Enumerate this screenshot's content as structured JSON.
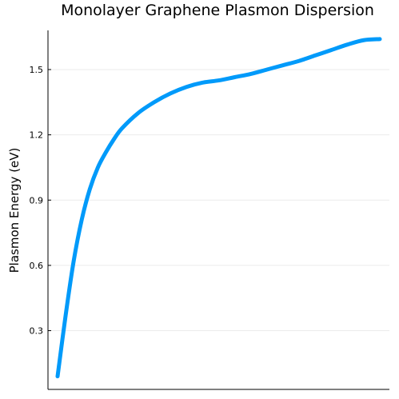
{
  "chart_data": {
    "type": "line",
    "title": "Monolayer Graphene Plasmon Dispersion",
    "xlabel": "",
    "ylabel": "Plasmon Energy (eV)",
    "xlim": [
      0,
      1
    ],
    "ylim": [
      0.03,
      1.68
    ],
    "y_ticks": [
      0.3,
      0.6,
      0.9,
      1.2,
      1.5
    ],
    "y_tick_labels": [
      "0.3",
      "0.6",
      "0.9",
      "1.2",
      "1.5"
    ],
    "grid": true,
    "legend": "none",
    "series": [
      {
        "color": "#009AFA",
        "x": [
          0.0,
          0.025,
          0.05,
          0.075,
          0.1,
          0.125,
          0.15,
          0.175,
          0.2,
          0.25,
          0.3,
          0.35,
          0.4,
          0.45,
          0.5,
          0.55,
          0.6,
          0.65,
          0.7,
          0.75,
          0.8,
          0.85,
          0.9,
          0.95,
          1.0
        ],
        "y": [
          0.09,
          0.37,
          0.62,
          0.81,
          0.95,
          1.05,
          1.12,
          1.18,
          1.23,
          1.3,
          1.35,
          1.39,
          1.42,
          1.44,
          1.45,
          1.465,
          1.48,
          1.5,
          1.52,
          1.54,
          1.565,
          1.59,
          1.615,
          1.635,
          1.64
        ]
      }
    ]
  }
}
